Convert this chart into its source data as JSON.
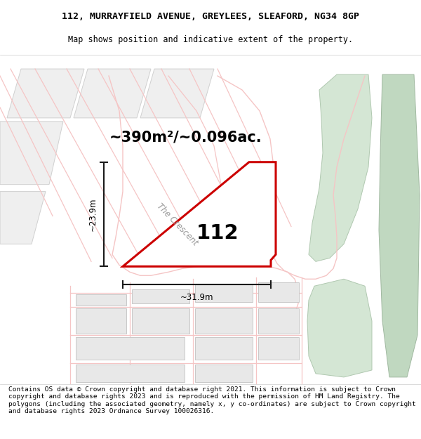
{
  "title_line1": "112, MURRAYFIELD AVENUE, GREYLEES, SLEAFORD, NG34 8GP",
  "title_line2": "Map shows position and indicative extent of the property.",
  "footer_text": "Contains OS data © Crown copyright and database right 2021. This information is subject to Crown copyright and database rights 2023 and is reproduced with the permission of HM Land Registry. The polygons (including the associated geometry, namely x, y co-ordinates) are subject to Crown copyright and database rights 2023 Ordnance Survey 100026316.",
  "area_label": "~390m²/~0.096ac.",
  "width_label": "~31.9m",
  "height_label": "~23.9m",
  "plot_number": "112",
  "road_label": "The Crescent",
  "map_bg": "#ffffff",
  "plot_fill": "#ffffff",
  "plot_edge_color": "#cc0000",
  "plot_edge_width": 2.2,
  "road_pink": "#f5c5c5",
  "road_pink2": "#e8a8a8",
  "building_fill": "#e8e8e8",
  "building_edge": "#c8c8c8",
  "green_fill": "#d4e6d4",
  "green_fill2": "#c0d8c0",
  "dim_color": "#1a1a1a",
  "title_fontsize": 9.5,
  "subtitle_fontsize": 8.5,
  "footer_fontsize": 6.8
}
